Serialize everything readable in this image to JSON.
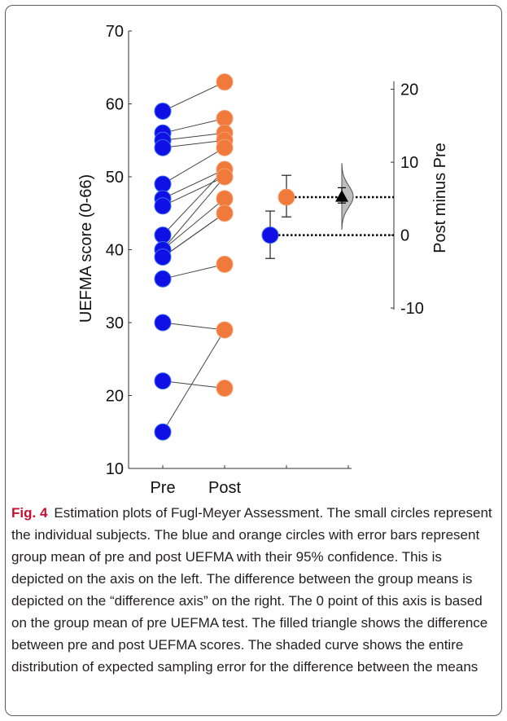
{
  "chart_data": {
    "type": "estimation-plot",
    "left_axis": {
      "label": "UEFMA score (0-66)",
      "ylim": [
        10,
        70
      ],
      "ticks": [
        10,
        20,
        30,
        40,
        50,
        60,
        70
      ]
    },
    "right_axis": {
      "label": "Post minus Pre",
      "ylim": [
        -10,
        20
      ],
      "ticks": [
        -10,
        0,
        10,
        20
      ],
      "zero_at_left_value": 42
    },
    "categories": [
      "Pre",
      "Post"
    ],
    "colors": {
      "pre": "#1010e6",
      "post": "#f07a3c",
      "triangle": "#000000",
      "curve": "#bdbdbd"
    },
    "pairs": [
      [
        59,
        63
      ],
      [
        56,
        58
      ],
      [
        55,
        56
      ],
      [
        54,
        55
      ],
      [
        49,
        54
      ],
      [
        47,
        51
      ],
      [
        46,
        50
      ],
      [
        42,
        51
      ],
      [
        40,
        47
      ],
      [
        39,
        45
      ],
      [
        36,
        38
      ],
      [
        30,
        29
      ],
      [
        22,
        21
      ],
      [
        15,
        29
      ],
      [
        39,
        45
      ],
      [
        40,
        50
      ]
    ],
    "pre_values": [
      59,
      56,
      55,
      54,
      49,
      47,
      46,
      42,
      40,
      39,
      36,
      30,
      22,
      15
    ],
    "post_values": [
      63,
      58,
      56,
      55,
      54,
      51,
      50,
      47,
      45,
      38,
      29,
      21
    ],
    "group_means": {
      "pre": {
        "mean": 42,
        "ci": [
          38.8,
          45.3
        ]
      },
      "post": {
        "mean": 47.2,
        "ci": [
          44.5,
          50.2
        ]
      }
    },
    "difference": {
      "mean": 5.3,
      "ci": [
        4.4,
        6.5
      ]
    }
  },
  "caption": {
    "label": "Fig. 4",
    "text": "Estimation plots of Fugl-Meyer Assessment. The small circles represent the individual subjects. The blue and orange circles with error bars represent group mean of pre and post UEFMA with their 95% confidence. This is depicted on the axis on the left. The difference between the group means is depicted on the “difference axis” on the right. The 0 point of this axis is based on the group mean of pre UEFMA test. The filled triangle shows the difference between pre and post UEFMA scores. The shaded curve shows the entire distribution of expected sampling error for the difference between the means"
  }
}
